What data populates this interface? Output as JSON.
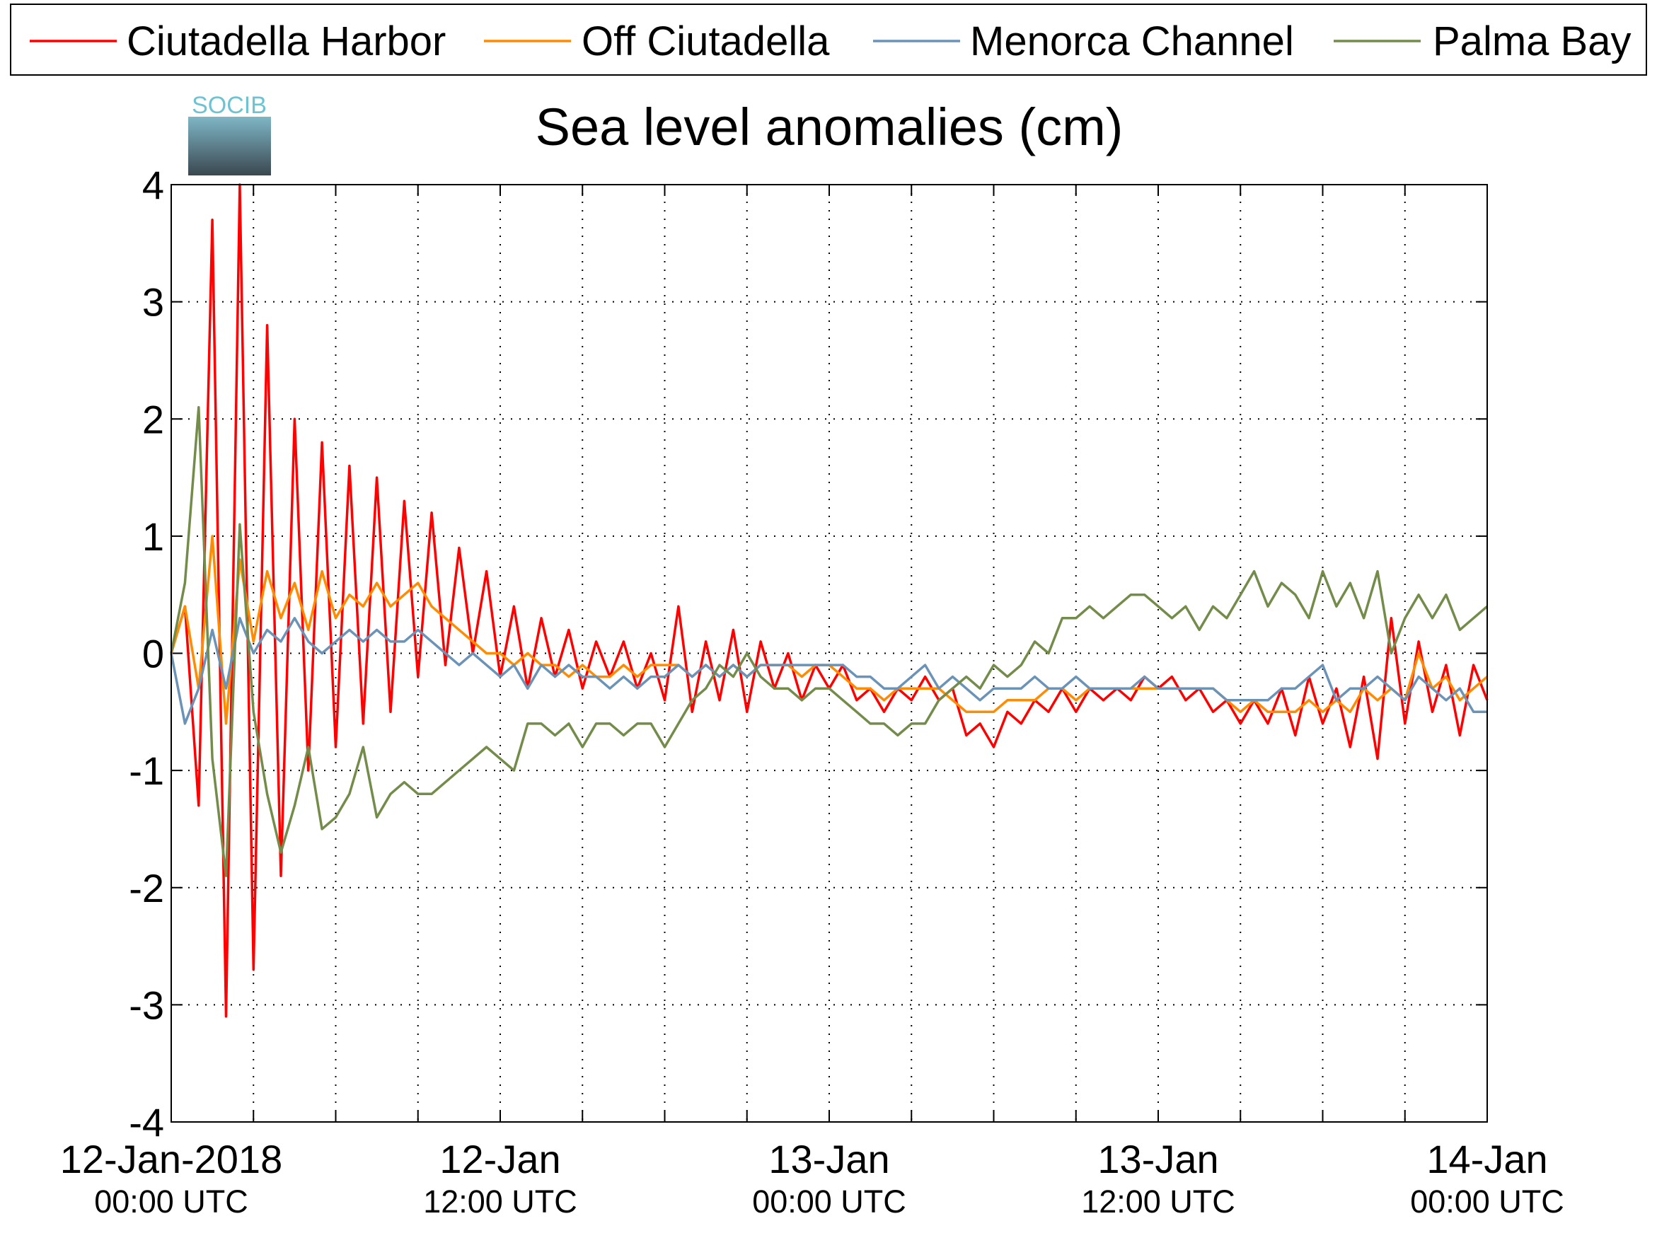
{
  "chart_data": {
    "type": "line",
    "title": "Sea level anomalies (cm)",
    "logo_text": "SOCIB",
    "x": [
      0,
      0.5,
      1,
      1.5,
      2,
      2.5,
      3,
      3.5,
      4,
      4.5,
      5,
      5.5,
      6,
      6.5,
      7,
      7.5,
      8,
      8.5,
      9,
      9.5,
      10,
      10.5,
      11,
      11.5,
      12,
      12.5,
      13,
      13.5,
      14,
      14.5,
      15,
      15.5,
      16,
      16.5,
      17,
      17.5,
      18,
      18.5,
      19,
      19.5,
      20,
      20.5,
      21,
      21.5,
      22,
      22.5,
      23,
      23.5,
      24,
      24.5,
      25,
      25.5,
      26,
      26.5,
      27,
      27.5,
      28,
      28.5,
      29,
      29.5,
      30,
      30.5,
      31,
      31.5,
      32,
      32.5,
      33,
      33.5,
      34,
      34.5,
      35,
      35.5,
      36,
      36.5,
      37,
      37.5,
      38,
      38.5,
      39,
      39.5,
      40,
      40.5,
      41,
      41.5,
      42,
      42.5,
      43,
      43.5,
      44,
      44.5,
      45,
      45.5,
      46,
      46.5,
      47,
      47.5,
      48
    ],
    "series": [
      {
        "name": "Ciutadella Harbor",
        "color": "#ff0000",
        "values": [
          0,
          0.4,
          -1.3,
          3.7,
          -3.1,
          4.0,
          -2.7,
          2.8,
          -1.9,
          2.0,
          -1.0,
          1.8,
          -0.8,
          1.6,
          -0.6,
          1.5,
          -0.5,
          1.3,
          -0.2,
          1.2,
          -0.1,
          0.9,
          0.0,
          0.7,
          -0.2,
          0.4,
          -0.3,
          0.3,
          -0.2,
          0.2,
          -0.3,
          0.1,
          -0.2,
          0.1,
          -0.3,
          0.0,
          -0.4,
          0.4,
          -0.5,
          0.1,
          -0.4,
          0.2,
          -0.5,
          0.1,
          -0.3,
          0.0,
          -0.4,
          -0.1,
          -0.3,
          -0.1,
          -0.4,
          -0.3,
          -0.5,
          -0.3,
          -0.4,
          -0.2,
          -0.4,
          -0.3,
          -0.7,
          -0.6,
          -0.8,
          -0.5,
          -0.6,
          -0.4,
          -0.5,
          -0.3,
          -0.5,
          -0.3,
          -0.4,
          -0.3,
          -0.4,
          -0.2,
          -0.3,
          -0.2,
          -0.4,
          -0.3,
          -0.5,
          -0.4,
          -0.6,
          -0.4,
          -0.6,
          -0.3,
          -0.7,
          -0.2,
          -0.6,
          -0.3,
          -0.8,
          -0.2,
          -0.9,
          0.3,
          -0.6,
          0.1,
          -0.5,
          -0.1,
          -0.7,
          -0.1,
          -0.4
        ]
      },
      {
        "name": "Off Ciutadella",
        "color": "#ff8c00",
        "values": [
          0,
          0.4,
          -0.3,
          1.0,
          -0.6,
          0.8,
          0.1,
          0.7,
          0.3,
          0.6,
          0.2,
          0.7,
          0.3,
          0.5,
          0.4,
          0.6,
          0.4,
          0.5,
          0.6,
          0.4,
          0.3,
          0.2,
          0.1,
          0.0,
          0.0,
          -0.1,
          0.0,
          -0.1,
          -0.1,
          -0.2,
          -0.1,
          -0.2,
          -0.2,
          -0.1,
          -0.2,
          -0.1,
          -0.1,
          -0.1,
          -0.2,
          -0.1,
          -0.2,
          -0.1,
          -0.2,
          -0.1,
          -0.1,
          -0.1,
          -0.2,
          -0.1,
          -0.1,
          -0.2,
          -0.3,
          -0.3,
          -0.4,
          -0.3,
          -0.3,
          -0.3,
          -0.3,
          -0.4,
          -0.5,
          -0.5,
          -0.5,
          -0.4,
          -0.4,
          -0.4,
          -0.3,
          -0.3,
          -0.4,
          -0.3,
          -0.3,
          -0.3,
          -0.3,
          -0.3,
          -0.3,
          -0.3,
          -0.3,
          -0.3,
          -0.3,
          -0.4,
          -0.5,
          -0.4,
          -0.5,
          -0.5,
          -0.5,
          -0.4,
          -0.5,
          -0.4,
          -0.5,
          -0.3,
          -0.4,
          -0.3,
          -0.4,
          0.0,
          -0.3,
          -0.2,
          -0.4,
          -0.3,
          -0.2
        ]
      },
      {
        "name": "Menorca Channel",
        "color": "#6b93b8",
        "values": [
          0,
          -0.6,
          -0.3,
          0.2,
          -0.3,
          0.3,
          0.0,
          0.2,
          0.1,
          0.3,
          0.1,
          0.0,
          0.1,
          0.2,
          0.1,
          0.2,
          0.1,
          0.1,
          0.2,
          0.1,
          0.0,
          -0.1,
          0.0,
          -0.1,
          -0.2,
          -0.1,
          -0.3,
          -0.1,
          -0.2,
          -0.1,
          -0.2,
          -0.2,
          -0.3,
          -0.2,
          -0.3,
          -0.2,
          -0.2,
          -0.1,
          -0.2,
          -0.1,
          -0.2,
          -0.1,
          -0.2,
          -0.1,
          -0.1,
          -0.1,
          -0.1,
          -0.1,
          -0.1,
          -0.1,
          -0.2,
          -0.2,
          -0.3,
          -0.3,
          -0.2,
          -0.1,
          -0.3,
          -0.2,
          -0.3,
          -0.4,
          -0.3,
          -0.3,
          -0.3,
          -0.2,
          -0.3,
          -0.3,
          -0.2,
          -0.3,
          -0.3,
          -0.3,
          -0.3,
          -0.2,
          -0.3,
          -0.3,
          -0.3,
          -0.3,
          -0.3,
          -0.4,
          -0.4,
          -0.4,
          -0.4,
          -0.3,
          -0.3,
          -0.2,
          -0.1,
          -0.4,
          -0.3,
          -0.3,
          -0.2,
          -0.3,
          -0.4,
          -0.2,
          -0.3,
          -0.4,
          -0.3,
          -0.5,
          -0.5
        ]
      },
      {
        "name": "Palma Bay",
        "color": "#738c4a",
        "values": [
          0,
          0.6,
          2.1,
          -0.9,
          -1.9,
          1.1,
          -0.5,
          -1.2,
          -1.7,
          -1.3,
          -0.8,
          -1.5,
          -1.4,
          -1.2,
          -0.8,
          -1.4,
          -1.2,
          -1.1,
          -1.2,
          -1.2,
          -1.1,
          -1.0,
          -0.9,
          -0.8,
          -0.9,
          -1.0,
          -0.6,
          -0.6,
          -0.7,
          -0.6,
          -0.8,
          -0.6,
          -0.6,
          -0.7,
          -0.6,
          -0.6,
          -0.8,
          -0.6,
          -0.4,
          -0.3,
          -0.1,
          -0.2,
          0.0,
          -0.2,
          -0.3,
          -0.3,
          -0.4,
          -0.3,
          -0.3,
          -0.4,
          -0.5,
          -0.6,
          -0.6,
          -0.7,
          -0.6,
          -0.6,
          -0.4,
          -0.3,
          -0.2,
          -0.3,
          -0.1,
          -0.2,
          -0.1,
          0.1,
          0.0,
          0.3,
          0.3,
          0.4,
          0.3,
          0.4,
          0.5,
          0.5,
          0.4,
          0.3,
          0.4,
          0.2,
          0.4,
          0.3,
          0.5,
          0.7,
          0.4,
          0.6,
          0.5,
          0.3,
          0.7,
          0.4,
          0.6,
          0.3,
          0.7,
          0.0,
          0.3,
          0.5,
          0.3,
          0.5,
          0.2,
          0.3,
          0.4
        ]
      }
    ],
    "xlim": [
      0,
      48
    ],
    "xticks": [
      {
        "value": 0,
        "label": "12-Jan-2018",
        "sublabel": "00:00 UTC"
      },
      {
        "value": 12,
        "label": "12-Jan",
        "sublabel": "12:00 UTC"
      },
      {
        "value": 24,
        "label": "13-Jan",
        "sublabel": "00:00 UTC"
      },
      {
        "value": 36,
        "label": "13-Jan",
        "sublabel": "12:00 UTC"
      },
      {
        "value": 48,
        "label": "14-Jan",
        "sublabel": "00:00 UTC"
      }
    ],
    "xminorticks": [
      3,
      6,
      9,
      15,
      18,
      21,
      27,
      30,
      33,
      39,
      42,
      45
    ],
    "ylim": [
      -4,
      4
    ],
    "yticks": [
      -4,
      -3,
      -2,
      -1,
      0,
      1,
      2,
      3,
      4
    ],
    "grid": true,
    "legend": "top"
  }
}
